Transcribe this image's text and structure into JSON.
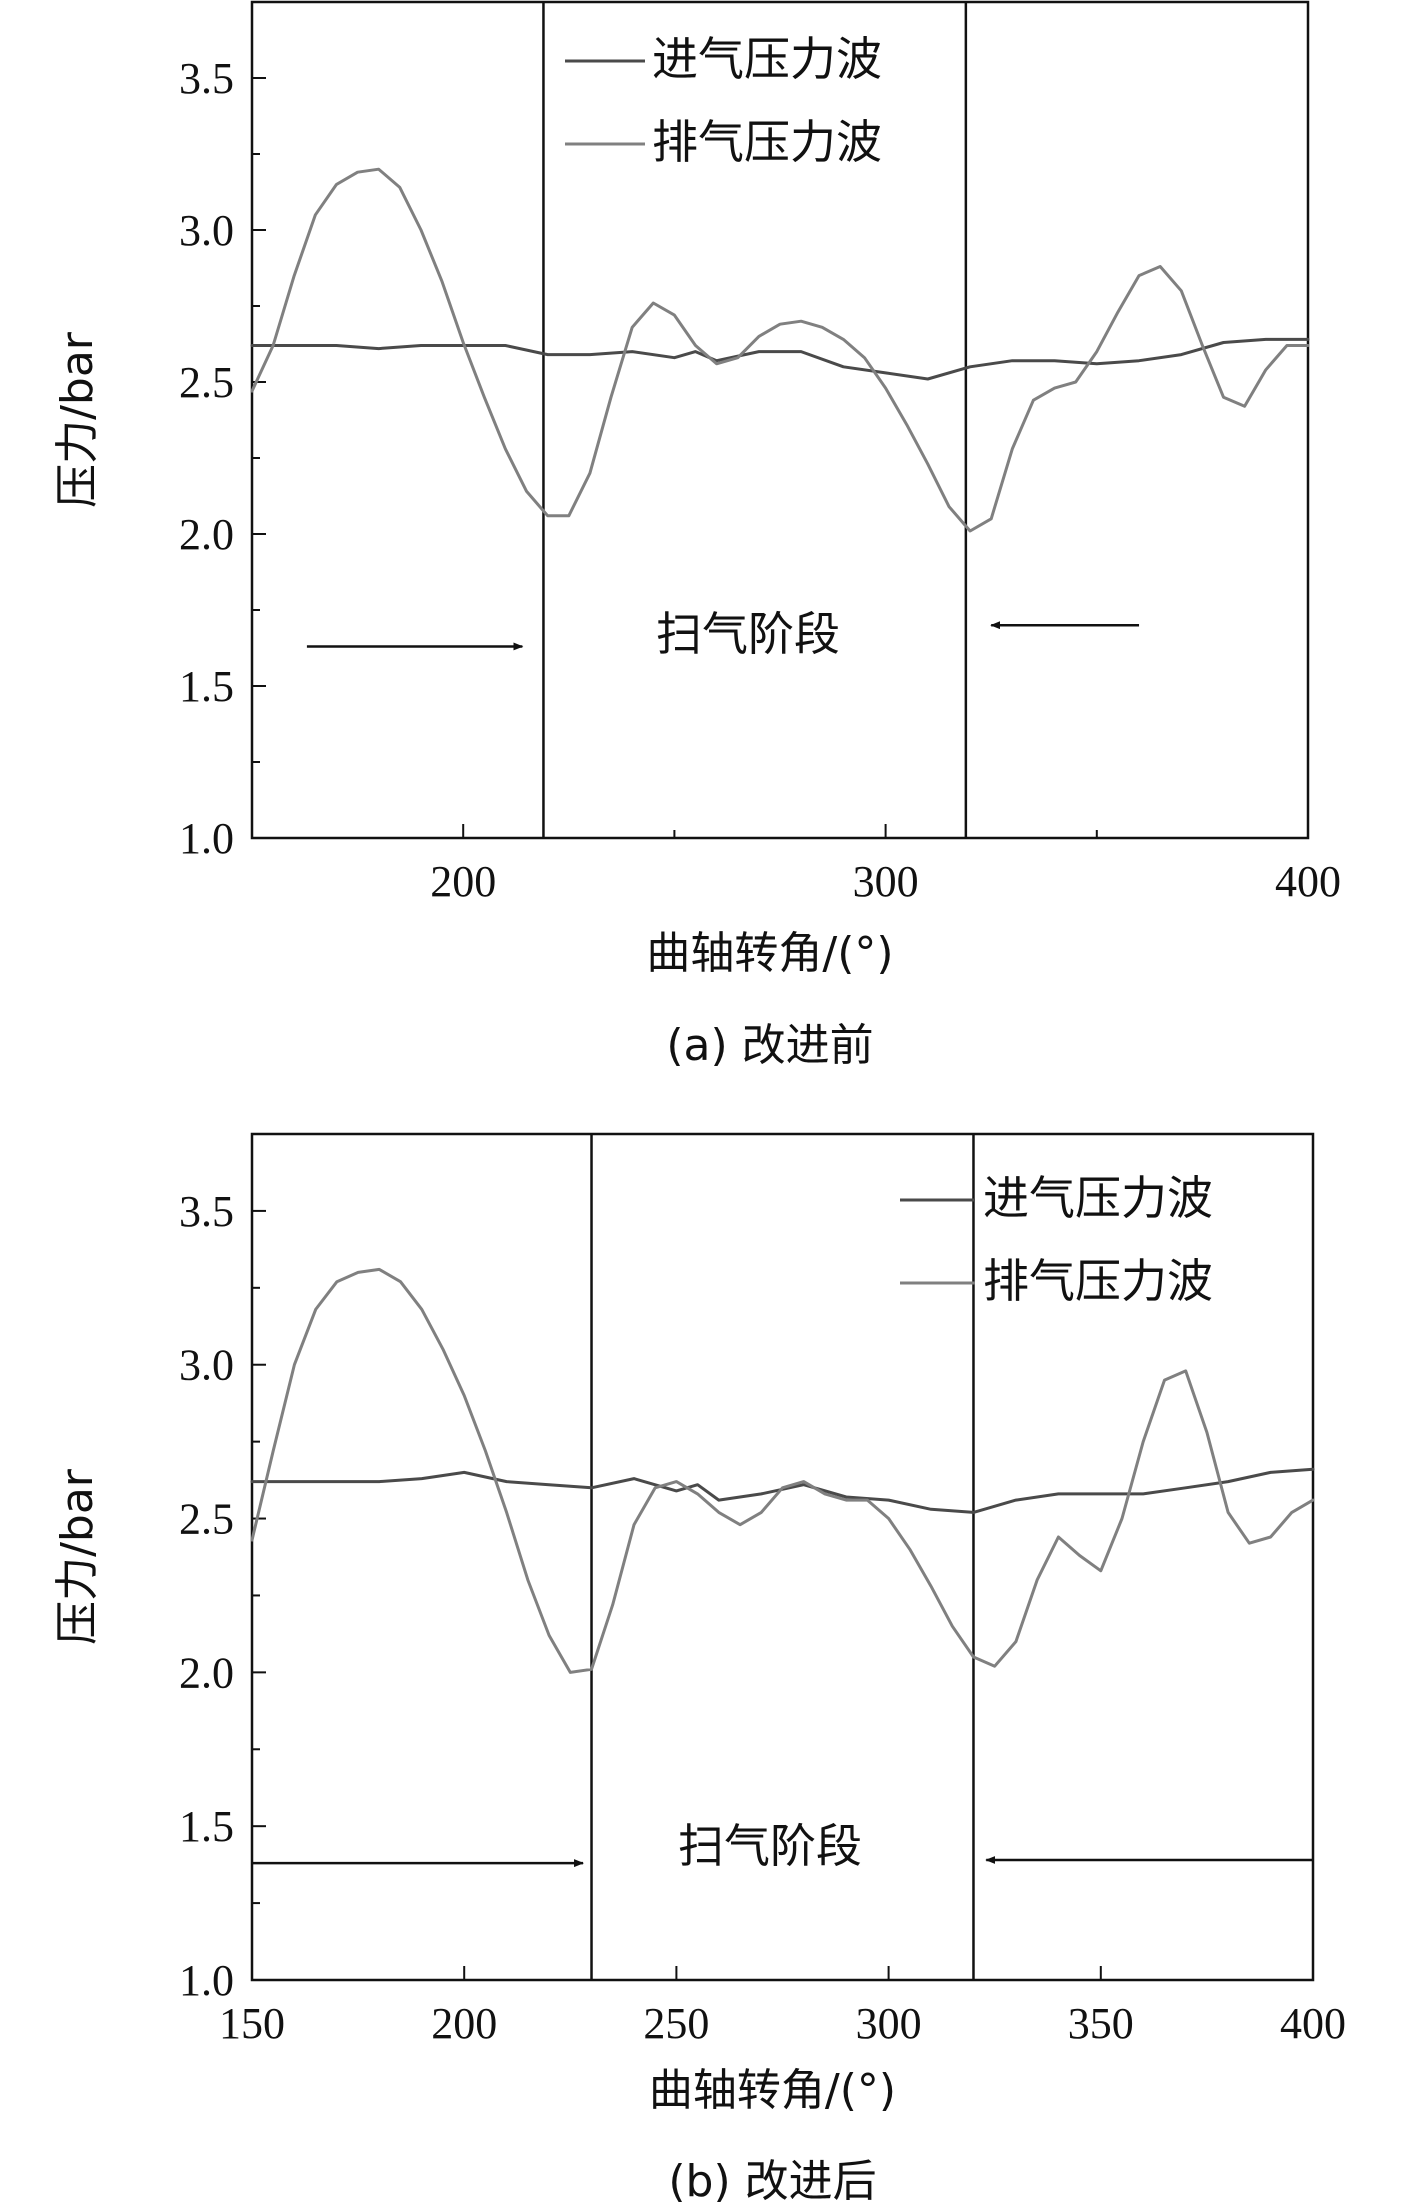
{
  "chart_data": [
    {
      "type": "line",
      "caption": "(a) 改进前",
      "xlabel": "曲轴转角/(°)",
      "ylabel": "压力/bar",
      "xlim": [
        150,
        400
      ],
      "ylim": [
        1.0,
        3.75
      ],
      "xticks": [
        200,
        300,
        400
      ],
      "yticks": [
        1.0,
        1.5,
        2.0,
        2.5,
        3.0,
        3.5
      ],
      "legend": {
        "position": "top-center",
        "entries": [
          "进气压力波",
          "排气压力波"
        ]
      },
      "grid": false,
      "vlines": [
        219,
        319
      ],
      "region_label": "扫气阶段",
      "arrows": [
        {
          "from": [
            163,
            1.63
          ],
          "to": [
            214,
            1.63
          ]
        },
        {
          "from": [
            360,
            1.7
          ],
          "to": [
            325,
            1.7
          ]
        }
      ],
      "series": [
        {
          "name": "进气压力波",
          "x": [
            150,
            160,
            170,
            180,
            190,
            200,
            210,
            220,
            230,
            240,
            250,
            255,
            260,
            270,
            280,
            290,
            300,
            310,
            320,
            330,
            340,
            350,
            360,
            370,
            380,
            390,
            400
          ],
          "y": [
            2.62,
            2.62,
            2.62,
            2.61,
            2.62,
            2.62,
            2.62,
            2.59,
            2.59,
            2.6,
            2.58,
            2.6,
            2.57,
            2.6,
            2.6,
            2.55,
            2.53,
            2.51,
            2.55,
            2.57,
            2.57,
            2.56,
            2.57,
            2.59,
            2.63,
            2.64,
            2.64
          ]
        },
        {
          "name": "排气压力波",
          "x": [
            150,
            155,
            160,
            165,
            170,
            175,
            180,
            185,
            190,
            195,
            200,
            205,
            210,
            215,
            220,
            225,
            230,
            235,
            240,
            245,
            250,
            255,
            260,
            265,
            270,
            275,
            280,
            285,
            290,
            295,
            300,
            305,
            310,
            315,
            320,
            325,
            330,
            335,
            340,
            345,
            350,
            355,
            360,
            365,
            370,
            375,
            380,
            385,
            390,
            395,
            400
          ],
          "y": [
            2.47,
            2.62,
            2.85,
            3.05,
            3.15,
            3.19,
            3.2,
            3.14,
            3.0,
            2.83,
            2.63,
            2.45,
            2.28,
            2.14,
            2.06,
            2.06,
            2.2,
            2.45,
            2.68,
            2.76,
            2.72,
            2.62,
            2.56,
            2.58,
            2.65,
            2.69,
            2.7,
            2.68,
            2.64,
            2.58,
            2.48,
            2.36,
            2.23,
            2.09,
            2.01,
            2.05,
            2.28,
            2.44,
            2.48,
            2.5,
            2.6,
            2.73,
            2.85,
            2.88,
            2.8,
            2.62,
            2.45,
            2.42,
            2.54,
            2.62,
            2.62
          ]
        }
      ]
    },
    {
      "type": "line",
      "caption": "(b) 改进后",
      "xlabel": "曲轴转角/(°)",
      "ylabel": "压力/bar",
      "xlim": [
        150,
        400
      ],
      "ylim": [
        1.0,
        3.75
      ],
      "xticks": [
        150,
        200,
        250,
        300,
        350,
        400
      ],
      "yticks": [
        1.0,
        1.5,
        2.0,
        2.5,
        3.0,
        3.5
      ],
      "legend": {
        "position": "top-right",
        "entries": [
          "进气压力波",
          "排气压力波"
        ]
      },
      "grid": false,
      "vlines": [
        230,
        320
      ],
      "region_label": "扫气阶段",
      "arrows": [
        {
          "from": [
            150,
            1.38
          ],
          "to": [
            228,
            1.38
          ]
        },
        {
          "from": [
            400,
            1.39
          ],
          "to": [
            323,
            1.39
          ]
        }
      ],
      "series": [
        {
          "name": "进气压力波",
          "x": [
            150,
            160,
            170,
            180,
            190,
            200,
            210,
            220,
            230,
            240,
            250,
            255,
            260,
            270,
            280,
            290,
            300,
            310,
            320,
            330,
            340,
            350,
            360,
            370,
            380,
            390,
            400
          ],
          "y": [
            2.62,
            2.62,
            2.62,
            2.62,
            2.63,
            2.65,
            2.62,
            2.61,
            2.6,
            2.63,
            2.59,
            2.61,
            2.56,
            2.58,
            2.61,
            2.57,
            2.56,
            2.53,
            2.52,
            2.56,
            2.58,
            2.58,
            2.58,
            2.6,
            2.62,
            2.65,
            2.66
          ]
        },
        {
          "name": "排气压力波",
          "x": [
            150,
            155,
            160,
            165,
            170,
            175,
            180,
            185,
            190,
            195,
            200,
            205,
            210,
            215,
            220,
            225,
            230,
            235,
            240,
            245,
            250,
            255,
            260,
            265,
            270,
            275,
            280,
            285,
            290,
            295,
            300,
            305,
            310,
            315,
            320,
            325,
            330,
            335,
            340,
            345,
            350,
            355,
            360,
            365,
            370,
            375,
            380,
            385,
            390,
            395,
            400
          ],
          "y": [
            2.43,
            2.72,
            3.0,
            3.18,
            3.27,
            3.3,
            3.31,
            3.27,
            3.18,
            3.05,
            2.9,
            2.72,
            2.52,
            2.3,
            2.12,
            2.0,
            2.01,
            2.22,
            2.48,
            2.6,
            2.62,
            2.58,
            2.52,
            2.48,
            2.52,
            2.6,
            2.62,
            2.58,
            2.56,
            2.56,
            2.5,
            2.4,
            2.28,
            2.15,
            2.05,
            2.02,
            2.1,
            2.3,
            2.44,
            2.38,
            2.33,
            2.5,
            2.75,
            2.95,
            2.98,
            2.78,
            2.52,
            2.42,
            2.44,
            2.52,
            2.56
          ]
        }
      ]
    }
  ]
}
